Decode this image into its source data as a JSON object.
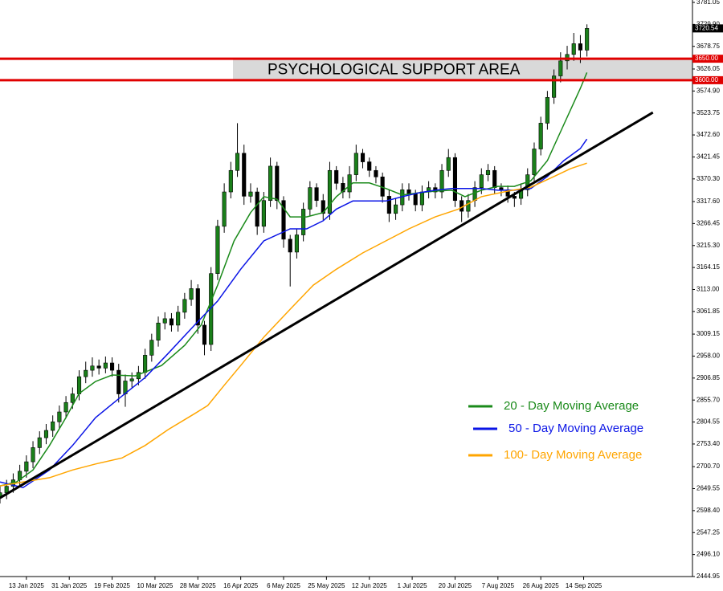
{
  "chart_data": {
    "type": "candlestick",
    "xlim": [
      0,
      210
    ],
    "ylim": [
      2444.95,
      3781.05
    ],
    "yticks": [
      2444.95,
      {
        "value": 2496.1,
        "label": "2496.10"
      },
      2547.25,
      {
        "value": 2598.4,
        "label": "2598.40"
      },
      2649.55,
      {
        "value": 2700.7,
        "label": "2700.70"
      },
      {
        "value": 2753.4,
        "label": "2753.40"
      },
      2804.55,
      {
        "value": 2855.7,
        "label": "2855.70"
      },
      2906.85,
      {
        "value": 2958.0,
        "label": "2958.00"
      },
      3009.15,
      3061.85,
      {
        "value": 3113.0,
        "label": "3113.00"
      },
      3164.15,
      {
        "value": 3215.3,
        "label": "3215.30"
      },
      3266.45,
      {
        "value": 3317.6,
        "label": "3317.60"
      },
      {
        "value": 3370.3,
        "label": "3370.30"
      },
      3421.45,
      {
        "value": 3472.6,
        "label": "3472.60"
      },
      3523.75,
      {
        "value": 3574.9,
        "label": "3574.90"
      },
      3626.05,
      3678.75,
      {
        "value": 3729.9,
        "label": "3729.90"
      },
      3781.05
    ],
    "xticks": [
      {
        "value": 8,
        "label": "13 Jan 2025"
      },
      {
        "value": 21,
        "label": "31 Jan 2025"
      },
      {
        "value": 34,
        "label": "19 Feb 2025"
      },
      {
        "value": 47,
        "label": "10 Mar 2025"
      },
      {
        "value": 60,
        "label": "28 Mar 2025"
      },
      {
        "value": 73,
        "label": "16 Apr 2025"
      },
      {
        "value": 86,
        "label": "6 May 2025"
      },
      {
        "value": 99,
        "label": "25 May 2025"
      },
      {
        "value": 112,
        "label": "12 Jun 2025"
      },
      {
        "value": 125,
        "label": "1 Jul 2025"
      },
      {
        "value": 138,
        "label": "20 Jul 2025"
      },
      {
        "value": 151,
        "label": "7 Aug 2025"
      },
      {
        "value": 164,
        "label": "26 Aug 2025"
      },
      {
        "value": 177,
        "label": "14 Sep 2025"
      }
    ],
    "up_color": "#1a7f1a",
    "down_color": "#000000",
    "candles": {
      "x": [
        0,
        2,
        4,
        6,
        8,
        10,
        12,
        14,
        16,
        18,
        20,
        22,
        24,
        26,
        28,
        30,
        32,
        34,
        36,
        38,
        40,
        42,
        44,
        46,
        48,
        50,
        52,
        54,
        56,
        58,
        60,
        62,
        64,
        66,
        68,
        70,
        72,
        74,
        76,
        78,
        80,
        82,
        84,
        86,
        88,
        90,
        92,
        94,
        96,
        98,
        100,
        102,
        104,
        106,
        108,
        110,
        112,
        114,
        116,
        118,
        120,
        122,
        124,
        126,
        128,
        130,
        132,
        134,
        136,
        138,
        140,
        142,
        144,
        146,
        148,
        150,
        152,
        154,
        156,
        158,
        160,
        162,
        164,
        166,
        168,
        170,
        172,
        174,
        176,
        178
      ],
      "open": [
        2630,
        2640,
        2655,
        2670,
        2690,
        2712,
        2745,
        2768,
        2785,
        2805,
        2828,
        2850,
        2870,
        2910,
        2925,
        2935,
        2930,
        2942,
        2925,
        2870,
        2900,
        2905,
        2920,
        2960,
        2995,
        3035,
        3045,
        3030,
        3060,
        3090,
        3115,
        3030,
        2985,
        3150,
        3260,
        3340,
        3390,
        3430,
        3330,
        3340,
        3260,
        3320,
        3400,
        3320,
        3230,
        3200,
        3240,
        3300,
        3350,
        3320,
        3290,
        3390,
        3360,
        3340,
        3380,
        3430,
        3410,
        3390,
        3375,
        3330,
        3290,
        3310,
        3345,
        3335,
        3310,
        3340,
        3350,
        3340,
        3390,
        3420,
        3320,
        3295,
        3320,
        3350,
        3380,
        3390,
        3350,
        3345,
        3330,
        3325,
        3345,
        3380,
        3440,
        3500,
        3560,
        3610,
        3645,
        3660,
        3685,
        3670
      ],
      "high": [
        2655,
        2670,
        2685,
        2705,
        2727,
        2760,
        2783,
        2800,
        2820,
        2843,
        2865,
        2885,
        2925,
        2945,
        2955,
        2950,
        2957,
        2955,
        2940,
        2915,
        2920,
        2935,
        2975,
        3010,
        3050,
        3060,
        3058,
        3075,
        3105,
        3135,
        3125,
        3040,
        3165,
        3275,
        3360,
        3410,
        3500,
        3450,
        3360,
        3350,
        3340,
        3420,
        3410,
        3330,
        3240,
        3255,
        3315,
        3365,
        3360,
        3335,
        3410,
        3400,
        3375,
        3400,
        3450,
        3440,
        3420,
        3400,
        3385,
        3345,
        3325,
        3360,
        3360,
        3345,
        3355,
        3365,
        3360,
        3405,
        3440,
        3430,
        3330,
        3335,
        3365,
        3395,
        3405,
        3400,
        3360,
        3355,
        3340,
        3360,
        3395,
        3455,
        3515,
        3575,
        3625,
        3665,
        3680,
        3710,
        3705,
        3730
      ],
      "low": [
        2615,
        2625,
        2640,
        2655,
        2675,
        2697,
        2730,
        2753,
        2770,
        2790,
        2813,
        2835,
        2855,
        2895,
        2910,
        2915,
        2918,
        2910,
        2850,
        2840,
        2885,
        2890,
        2905,
        2945,
        2980,
        3020,
        3015,
        3015,
        3045,
        3075,
        3010,
        2960,
        2970,
        3135,
        3245,
        3325,
        3375,
        3310,
        3315,
        3240,
        3245,
        3305,
        3300,
        3210,
        3120,
        3185,
        3225,
        3285,
        3305,
        3275,
        3275,
        3345,
        3325,
        3325,
        3365,
        3395,
        3375,
        3360,
        3315,
        3270,
        3275,
        3295,
        3320,
        3295,
        3295,
        3325,
        3325,
        3325,
        3375,
        3305,
        3270,
        3280,
        3305,
        3335,
        3365,
        3335,
        3330,
        3315,
        3305,
        3310,
        3330,
        3365,
        3425,
        3485,
        3545,
        3595,
        3625,
        3645,
        3640,
        3655
      ],
      "close": [
        2640,
        2655,
        2670,
        2690,
        2712,
        2745,
        2768,
        2785,
        2805,
        2828,
        2850,
        2870,
        2910,
        2925,
        2935,
        2930,
        2942,
        2925,
        2870,
        2900,
        2905,
        2920,
        2960,
        2995,
        3035,
        3045,
        3030,
        3060,
        3090,
        3115,
        3030,
        2985,
        3150,
        3260,
        3340,
        3390,
        3430,
        3330,
        3340,
        3260,
        3320,
        3400,
        3320,
        3230,
        3200,
        3240,
        3300,
        3350,
        3320,
        3290,
        3390,
        3360,
        3340,
        3380,
        3430,
        3410,
        3390,
        3375,
        3330,
        3290,
        3310,
        3345,
        3335,
        3310,
        3340,
        3350,
        3340,
        3390,
        3420,
        3320,
        3295,
        3320,
        3350,
        3380,
        3390,
        3350,
        3345,
        3330,
        3325,
        3345,
        3380,
        3440,
        3500,
        3560,
        3610,
        3645,
        3660,
        3685,
        3670,
        3720.54
      ]
    },
    "last_price": 3720.54,
    "series": [
      {
        "name": "20 - Day Moving Average",
        "color": "#1a8a1a",
        "x": [
          0,
          5,
          10,
          15,
          20,
          24,
          29,
          34,
          41,
          49,
          56,
          61,
          66,
          71,
          76,
          80,
          84,
          88,
          93,
          98,
          102,
          107,
          112,
          117,
          122,
          127,
          132,
          137,
          141,
          146,
          151,
          156,
          161,
          166,
          171,
          176,
          178
        ],
        "values": [
          2656,
          2665,
          2693,
          2750,
          2815,
          2871,
          2899,
          2914,
          2912,
          2936,
          2983,
          3030,
          3123,
          3226,
          3292,
          3329,
          3323,
          3282,
          3282,
          3292,
          3329,
          3361,
          3361,
          3348,
          3333,
          3338,
          3342,
          3344,
          3329,
          3344,
          3353,
          3353,
          3366,
          3413,
          3497,
          3581,
          3618
        ]
      },
      {
        "name": "50 - Day Moving Average",
        "color": "#0a14e6",
        "x": [
          0,
          7,
          15,
          22,
          29,
          37,
          44,
          51,
          59,
          66,
          73,
          80,
          88,
          93,
          98,
          102,
          107,
          112,
          117,
          122,
          127,
          132,
          137,
          141,
          146,
          151,
          156,
          161,
          166,
          171,
          176,
          178
        ],
        "values": [
          2665,
          2652,
          2693,
          2750,
          2815,
          2865,
          2908,
          2964,
          3030,
          3086,
          3160,
          3226,
          3254,
          3254,
          3273,
          3300,
          3319,
          3319,
          3319,
          3329,
          3338,
          3344,
          3348,
          3348,
          3348,
          3344,
          3344,
          3348,
          3376,
          3413,
          3441,
          3463
        ]
      },
      {
        "name": "100- Day Moving Average",
        "color": "#ffa500",
        "x": [
          0,
          7,
          15,
          22,
          29,
          37,
          44,
          51,
          59,
          63,
          68,
          73,
          80,
          88,
          95,
          102,
          110,
          117,
          124,
          132,
          139,
          146,
          154,
          161,
          168,
          173,
          178
        ],
        "values": [
          2656,
          2665,
          2675,
          2693,
          2707,
          2721,
          2750,
          2787,
          2824,
          2843,
          2890,
          2936,
          3002,
          3067,
          3123,
          3160,
          3198,
          3226,
          3254,
          3282,
          3300,
          3329,
          3342,
          3351,
          3376,
          3394,
          3407
        ]
      }
    ],
    "trendline": {
      "x": [
        0,
        198
      ],
      "values": [
        2628,
        3525
      ]
    },
    "support": {
      "label": "PSYCHOLOGICAL SUPPORT AREA",
      "levels": [
        {
          "value": 3650,
          "label": "3650.00"
        },
        {
          "value": 3600,
          "label": "3600.00"
        }
      ]
    }
  }
}
